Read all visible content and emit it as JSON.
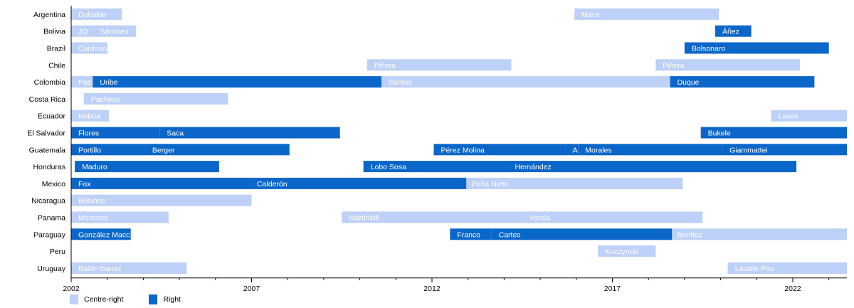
{
  "chart_data": {
    "type": "bar",
    "orientation": "horizontal-timeline",
    "categories": [
      "Argentina",
      "Bolivia",
      "Brazil",
      "Chile",
      "Colombia",
      "Costa Rica",
      "Ecuador",
      "El Salvador",
      "Guatemala",
      "Honduras",
      "Mexico",
      "Nicaragua",
      "Panama",
      "Paraguay",
      "Peru",
      "Uruguay"
    ],
    "x_ticks": [
      "2002",
      "2007",
      "2012",
      "2017",
      "2022"
    ],
    "xlim": [
      2002.0,
      2023.5
    ],
    "grid": false,
    "legend_position": "bottom-left",
    "colors": {
      "Centre-right": "#bdd0f7",
      "Right": "#0b66c9"
    },
    "series": [
      {
        "name": "Centre-right",
        "items": [
          {
            "category": "Argentina",
            "label": "Duhalde",
            "start": 2002.0,
            "end": 2003.4
          },
          {
            "category": "Argentina",
            "label": "Macri",
            "start": 2015.95,
            "end": 2019.95
          },
          {
            "category": "Bolivia",
            "label": "JQ",
            "start": 2002.0,
            "end": 2002.6
          },
          {
            "category": "Bolivia",
            "label": "Sánchez",
            "start": 2002.6,
            "end": 2003.8
          },
          {
            "category": "Brazil",
            "label": "Cardoso",
            "start": 2002.0,
            "end": 2003.0
          },
          {
            "category": "Chile",
            "label": "Piñera",
            "start": 2010.2,
            "end": 2014.2
          },
          {
            "category": "Chile",
            "label": "Piñera",
            "start": 2018.2,
            "end": 2022.2
          },
          {
            "category": "Colombia",
            "label": "Pas",
            "start": 2002.0,
            "end": 2002.6
          },
          {
            "category": "Colombia",
            "label": "Santos",
            "start": 2010.6,
            "end": 2018.6
          },
          {
            "category": "Costa Rica",
            "label": "Pacheco",
            "start": 2002.35,
            "end": 2006.35
          },
          {
            "category": "Ecuador",
            "label": "Noboa",
            "start": 2002.0,
            "end": 2003.05
          },
          {
            "category": "Ecuador",
            "label": "Lasso",
            "start": 2021.4,
            "end": 2023.5
          },
          {
            "category": "Mexico",
            "label": "Peña Nieto",
            "start": 2012.9,
            "end": 2018.95
          },
          {
            "category": "Nicaragua",
            "label": "Bolaños",
            "start": 2002.0,
            "end": 2007.0
          },
          {
            "category": "Panama",
            "label": "Moscoso",
            "start": 2002.0,
            "end": 2004.7
          },
          {
            "category": "Panama",
            "label": "Martinelli",
            "start": 2009.5,
            "end": 2014.5
          },
          {
            "category": "Panama",
            "label": "Varela",
            "start": 2014.5,
            "end": 2019.5
          },
          {
            "category": "Paraguay",
            "label": "Benítez",
            "start": 2018.6,
            "end": 2023.5
          },
          {
            "category": "Peru",
            "label": "Kuczynski",
            "start": 2016.6,
            "end": 2018.2
          },
          {
            "category": "Uruguay",
            "label": "Batlle Ibanez",
            "start": 2002.0,
            "end": 2005.2
          },
          {
            "category": "Uruguay",
            "label": "Lacalle Pou",
            "start": 2020.2,
            "end": 2023.5
          }
        ]
      },
      {
        "name": "Right",
        "items": [
          {
            "category": "Bolivia",
            "label": "Áñez",
            "start": 2019.85,
            "end": 2020.85
          },
          {
            "category": "Brazil",
            "label": "Bolsonaro",
            "start": 2019.0,
            "end": 2023.0
          },
          {
            "category": "Colombia",
            "label": "Uribe",
            "start": 2002.6,
            "end": 2010.6
          },
          {
            "category": "Colombia",
            "label": "Duque",
            "start": 2018.6,
            "end": 2022.6
          },
          {
            "category": "El Salvador",
            "label": "Flores",
            "start": 2002.0,
            "end": 2004.45
          },
          {
            "category": "El Salvador",
            "label": "Saca",
            "start": 2004.45,
            "end": 2009.45
          },
          {
            "category": "El Salvador",
            "label": "Bukele",
            "start": 2019.45,
            "end": 2023.5
          },
          {
            "category": "Guatemala",
            "label": "Portillo",
            "start": 2002.0,
            "end": 2004.05
          },
          {
            "category": "Guatemala",
            "label": "Berger",
            "start": 2004.05,
            "end": 2008.05
          },
          {
            "category": "Guatemala",
            "label": "Pérez Molina",
            "start": 2012.05,
            "end": 2015.7
          },
          {
            "category": "Guatemala",
            "label": "AM",
            "start": 2015.7,
            "end": 2016.05
          },
          {
            "category": "Guatemala",
            "label": "Morales",
            "start": 2016.05,
            "end": 2020.05
          },
          {
            "category": "Guatemala",
            "label": "Giammattei",
            "start": 2020.05,
            "end": 2023.5
          },
          {
            "category": "Honduras",
            "label": "Maduro",
            "start": 2002.1,
            "end": 2006.1
          },
          {
            "category": "Honduras",
            "label": "Lobo Sosa",
            "start": 2010.1,
            "end": 2014.1
          },
          {
            "category": "Honduras",
            "label": "Hernández",
            "start": 2014.1,
            "end": 2022.1
          },
          {
            "category": "Mexico",
            "label": "Fox",
            "start": 2002.0,
            "end": 2006.95
          },
          {
            "category": "Mexico",
            "label": "Calderón",
            "start": 2006.95,
            "end": 2012.95
          },
          {
            "category": "Paraguay",
            "label": "González Macc",
            "start": 2002.0,
            "end": 2003.65
          },
          {
            "category": "Paraguay",
            "label": "Franco",
            "start": 2012.5,
            "end": 2013.65
          },
          {
            "category": "Paraguay",
            "label": "Cartes",
            "start": 2013.65,
            "end": 2018.65
          }
        ]
      }
    ],
    "legend": [
      "Centre-right",
      "Right"
    ]
  }
}
